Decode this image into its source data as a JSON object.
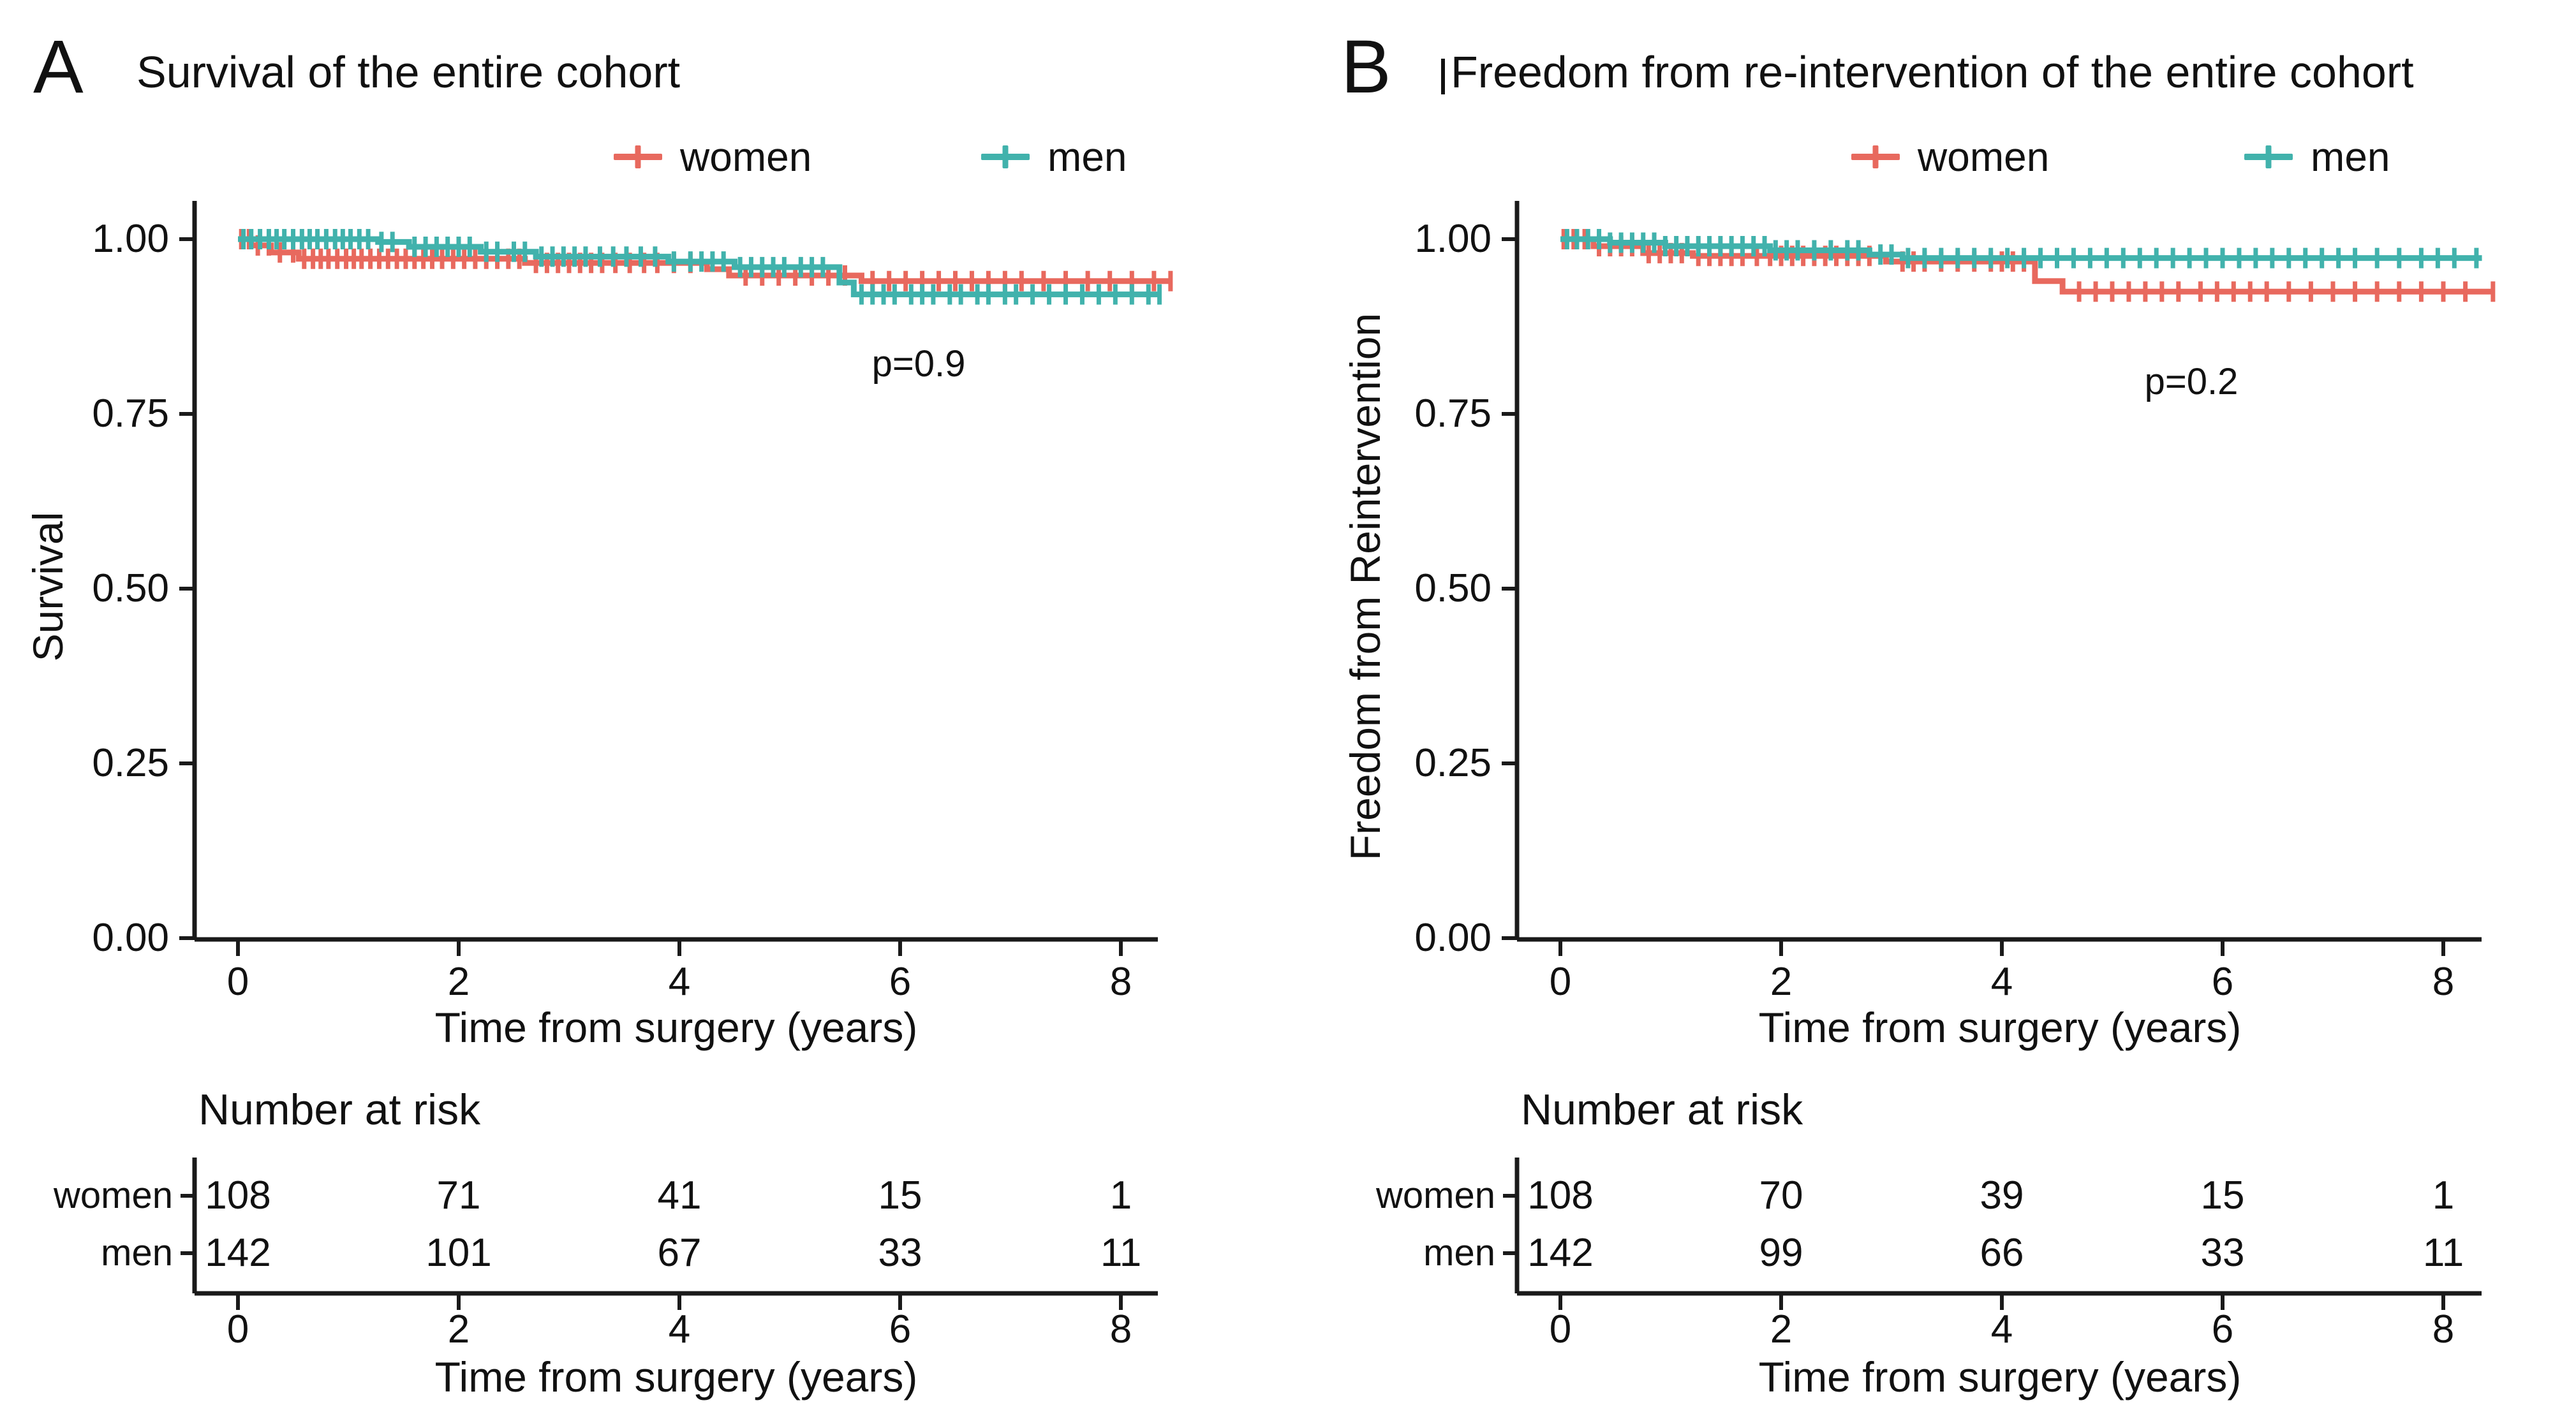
{
  "figure": {
    "background": "#ffffff",
    "text_color": "#111111",
    "axis_color": "#1a1a1a",
    "panels": [
      {
        "panel_label": "A",
        "title": "Survival of the entire cohort",
        "ylabel": "Survival",
        "xlabel": "Time from surgery (years)",
        "pvalue": "p=0.9",
        "legend": [
          {
            "label": "women",
            "color": "#E8695E"
          },
          {
            "label": "men",
            "color": "#41B2AC"
          }
        ],
        "ytick_labels": [
          "1.00",
          "0.75",
          "0.50",
          "0.25",
          "0.00"
        ],
        "xtick_labels": [
          "0",
          "2",
          "4",
          "6",
          "8"
        ],
        "risk_section": {
          "heading": "Number at risk",
          "xlabel": "Time from surgery (years)",
          "xtick_labels": [
            "0",
            "2",
            "4",
            "6",
            "8"
          ],
          "rows": [
            {
              "label": "women",
              "values": [
                "108",
                "71",
                "41",
                "15",
                "1"
              ]
            },
            {
              "label": "men",
              "values": [
                "142",
                "101",
                "67",
                "33",
                "11"
              ]
            }
          ]
        },
        "chart_data": {
          "type": "line",
          "subtype": "kaplan-meier-step",
          "title": "Survival of the entire cohort",
          "xlabel": "Time from surgery (years)",
          "ylabel": "Survival",
          "xlim": [
            0,
            8.5
          ],
          "ylim": [
            0,
            1.03
          ],
          "xticks": [
            0,
            2,
            4,
            6,
            8
          ],
          "yticks": [
            1.0,
            0.75,
            0.5,
            0.25,
            0.0
          ],
          "grid": false,
          "legend_position": "top",
          "pvalue": "p=0.9",
          "series": [
            {
              "name": "women",
              "color": "#E8695E",
              "steps": [
                [
                  0,
                  1.0
                ],
                [
                  0.12,
                  0.991
                ],
                [
                  0.3,
                  0.981
                ],
                [
                  0.55,
                  0.972
                ],
                [
                  2.6,
                  0.966
                ],
                [
                  4.25,
                  0.957
                ],
                [
                  4.45,
                  0.948
                ],
                [
                  5.65,
                  0.94
                ],
                [
                  8.45,
                  0.94
                ]
              ],
              "censor_times": [
                0.03,
                0.1,
                0.18,
                0.28,
                0.38,
                0.5,
                0.6,
                0.68,
                0.75,
                0.82,
                0.9,
                0.98,
                1.05,
                1.12,
                1.2,
                1.28,
                1.36,
                1.44,
                1.52,
                1.6,
                1.68,
                1.76,
                1.85,
                1.95,
                2.05,
                2.15,
                2.25,
                2.35,
                2.45,
                2.55,
                2.7,
                2.8,
                2.9,
                3.0,
                3.1,
                3.2,
                3.3,
                3.42,
                3.55,
                3.68,
                3.8,
                3.95,
                4.1,
                4.6,
                4.75,
                4.9,
                5.05,
                5.2,
                5.35,
                5.5,
                5.75,
                5.9,
                6.05,
                6.2,
                6.35,
                6.5,
                6.65,
                6.8,
                6.95,
                7.1,
                7.3,
                7.5,
                7.7,
                7.9,
                8.1,
                8.3,
                8.45
              ]
            },
            {
              "name": "men",
              "color": "#41B2AC",
              "steps": [
                [
                  0,
                  1.0
                ],
                [
                  1.27,
                  0.996
                ],
                [
                  1.55,
                  0.989
                ],
                [
                  2.2,
                  0.982
                ],
                [
                  2.7,
                  0.975
                ],
                [
                  3.9,
                  0.968
                ],
                [
                  4.5,
                  0.96
                ],
                [
                  5.45,
                  0.938
                ],
                [
                  5.58,
                  0.921
                ],
                [
                  8.35,
                  0.921
                ]
              ],
              "censor_times": [
                0.05,
                0.12,
                0.2,
                0.28,
                0.35,
                0.42,
                0.5,
                0.58,
                0.65,
                0.72,
                0.8,
                0.88,
                0.95,
                1.02,
                1.1,
                1.18,
                1.3,
                1.4,
                1.6,
                1.7,
                1.8,
                1.9,
                2.0,
                2.1,
                2.25,
                2.35,
                2.5,
                2.6,
                2.75,
                2.85,
                2.95,
                3.05,
                3.15,
                3.28,
                3.4,
                3.52,
                3.65,
                3.78,
                3.95,
                4.1,
                4.2,
                4.3,
                4.4,
                4.55,
                4.65,
                4.75,
                4.85,
                4.95,
                5.1,
                5.2,
                5.3,
                5.65,
                5.75,
                5.85,
                5.95,
                6.1,
                6.2,
                6.3,
                6.45,
                6.55,
                6.7,
                6.8,
                6.95,
                7.05,
                7.2,
                7.35,
                7.5,
                7.65,
                7.8,
                7.95,
                8.1,
                8.25,
                8.35
              ]
            }
          ],
          "number_at_risk": {
            "times": [
              0,
              2,
              4,
              6,
              8
            ],
            "women": [
              108,
              71,
              41,
              15,
              1
            ],
            "men": [
              142,
              101,
              67,
              33,
              11
            ]
          }
        }
      },
      {
        "panel_label": "B",
        "title": "Freedom from re-intervention of the entire cohort",
        "ylabel": "Freedom from Reintervention",
        "xlabel": "Time from surgery (years)",
        "pvalue": "p=0.2",
        "legend": [
          {
            "label": "women",
            "color": "#E8695E"
          },
          {
            "label": "men",
            "color": "#41B2AC"
          }
        ],
        "ytick_labels": [
          "1.00",
          "0.75",
          "0.50",
          "0.25",
          "0.00"
        ],
        "xtick_labels": [
          "0",
          "2",
          "4",
          "6",
          "8"
        ],
        "risk_section": {
          "heading": "Number at risk",
          "xlabel": "Time from surgery (years)",
          "xtick_labels": [
            "0",
            "2",
            "4",
            "6",
            "8"
          ],
          "rows": [
            {
              "label": "women",
              "values": [
                "108",
                "70",
                "39",
                "15",
                "1"
              ]
            },
            {
              "label": "men",
              "values": [
                "142",
                "99",
                "66",
                "33",
                "11"
              ]
            }
          ]
        },
        "chart_data": {
          "type": "line",
          "subtype": "kaplan-meier-step",
          "title": "Freedom from re-intervention of the entire cohort",
          "xlabel": "Time from surgery (years)",
          "ylabel": "Freedom from Reintervention",
          "xlim": [
            0,
            8.5
          ],
          "ylim": [
            0,
            1.03
          ],
          "xticks": [
            0,
            2,
            4,
            6,
            8
          ],
          "yticks": [
            1.0,
            0.75,
            0.5,
            0.25,
            0.0
          ],
          "grid": false,
          "legend_position": "top",
          "pvalue": "p=0.2",
          "series": [
            {
              "name": "women",
              "color": "#E8695E",
              "steps": [
                [
                  0,
                  1.0
                ],
                [
                  0.3,
                  0.99
                ],
                [
                  0.75,
                  0.98
                ],
                [
                  1.2,
                  0.976
                ],
                [
                  2.95,
                  0.968
                ],
                [
                  4.3,
                  0.94
                ],
                [
                  4.55,
                  0.925
                ],
                [
                  8.45,
                  0.925
                ]
              ],
              "censor_times": [
                0.03,
                0.12,
                0.22,
                0.35,
                0.45,
                0.55,
                0.65,
                0.8,
                0.9,
                1.0,
                1.1,
                1.25,
                1.35,
                1.45,
                1.55,
                1.65,
                1.78,
                1.9,
                2.0,
                2.1,
                2.2,
                2.3,
                2.4,
                2.5,
                2.6,
                2.7,
                2.8,
                3.1,
                3.2,
                3.3,
                3.45,
                3.6,
                3.75,
                3.9,
                4.0,
                4.1,
                4.2,
                4.7,
                4.85,
                5.0,
                5.15,
                5.3,
                5.45,
                5.6,
                5.8,
                5.95,
                6.1,
                6.25,
                6.4,
                6.6,
                6.8,
                7.0,
                7.2,
                7.4,
                7.6,
                7.8,
                8.0,
                8.2,
                8.45
              ]
            },
            {
              "name": "men",
              "color": "#41B2AC",
              "steps": [
                [
                  0,
                  1.0
                ],
                [
                  0.45,
                  0.995
                ],
                [
                  0.95,
                  0.99
                ],
                [
                  1.9,
                  0.984
                ],
                [
                  2.8,
                  0.978
                ],
                [
                  3.1,
                  0.973
                ],
                [
                  8.35,
                  0.973
                ]
              ],
              "censor_times": [
                0.06,
                0.15,
                0.25,
                0.35,
                0.45,
                0.55,
                0.65,
                0.75,
                0.85,
                0.95,
                1.05,
                1.15,
                1.25,
                1.35,
                1.45,
                1.55,
                1.65,
                1.75,
                1.85,
                1.95,
                2.05,
                2.15,
                2.3,
                2.45,
                2.6,
                2.7,
                2.9,
                3.0,
                3.15,
                3.3,
                3.45,
                3.6,
                3.75,
                3.9,
                4.05,
                4.2,
                4.35,
                4.5,
                4.65,
                4.8,
                4.95,
                5.1,
                5.25,
                5.4,
                5.55,
                5.7,
                5.85,
                6.0,
                6.15,
                6.3,
                6.45,
                6.6,
                6.75,
                6.9,
                7.05,
                7.2,
                7.4,
                7.6,
                7.8,
                7.95,
                8.1,
                8.3
              ]
            }
          ],
          "number_at_risk": {
            "times": [
              0,
              2,
              4,
              6,
              8
            ],
            "women": [
              108,
              70,
              39,
              15,
              1
            ],
            "men": [
              142,
              99,
              66,
              33,
              11
            ]
          }
        }
      }
    ]
  }
}
